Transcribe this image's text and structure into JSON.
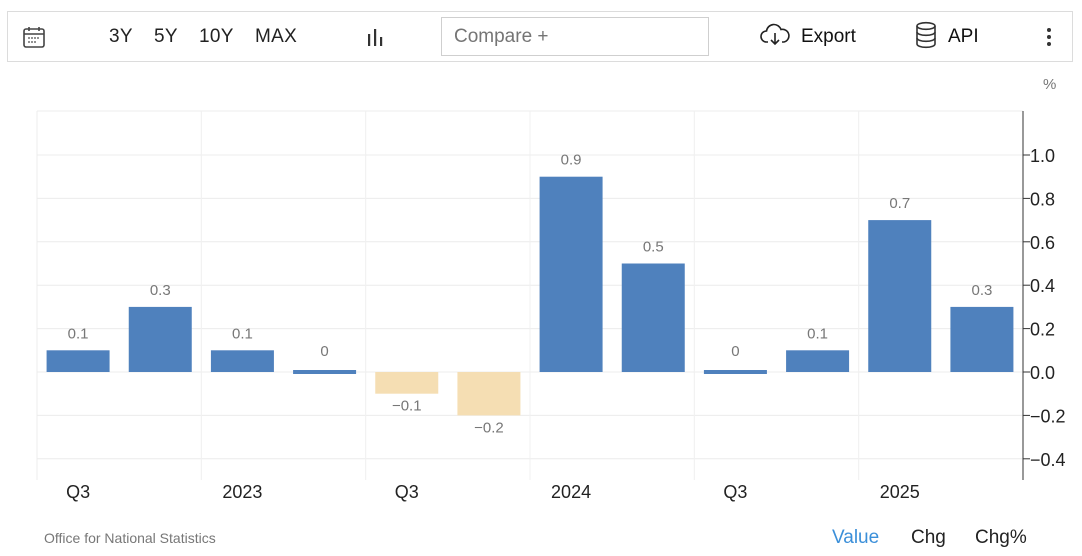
{
  "toolbar": {
    "ranges": [
      "3Y",
      "5Y",
      "10Y",
      "MAX"
    ],
    "compare_placeholder": "Compare +",
    "export_label": "Export",
    "api_label": "API",
    "icons": [
      "calendar-icon",
      "bar-chart-icon",
      "cloud-download-icon",
      "database-icon",
      "more-vertical-icon"
    ]
  },
  "unit_label": "%",
  "source": "Office for National Statistics",
  "modes": [
    "Value",
    "Chg",
    "Chg%"
  ],
  "active_mode": "Value",
  "colors": {
    "positive": "#4f81bd",
    "negative": "#f5deb3",
    "active_mode": "#3b8fd9"
  },
  "chart_data": {
    "type": "bar",
    "values": [
      0.1,
      0.3,
      0.1,
      0,
      -0.1,
      -0.2,
      0.9,
      0.5,
      0,
      0.1,
      0.7,
      0.3
    ],
    "data_labels": [
      "0.1",
      "0.3",
      "0.1",
      "0",
      "-0.1",
      "-0.2",
      "0.9",
      "0.5",
      "0",
      "0.1",
      "0.7",
      "0.3"
    ],
    "x_tick_labels": [
      "Q3",
      "2023",
      "Q3",
      "2024",
      "Q3",
      "2025"
    ],
    "y_ticks": [
      1.0,
      0.8,
      0.6,
      0.4,
      0.2,
      0.0,
      -0.2,
      -0.4
    ],
    "y_tick_labels": [
      "1.0",
      "0.8",
      "0.6",
      "0.4",
      "0.2",
      "0.0",
      "-0.2",
      "-0.4"
    ],
    "ylim": [
      -0.5,
      1.2
    ],
    "y_axis_side": "right",
    "grid": true
  }
}
